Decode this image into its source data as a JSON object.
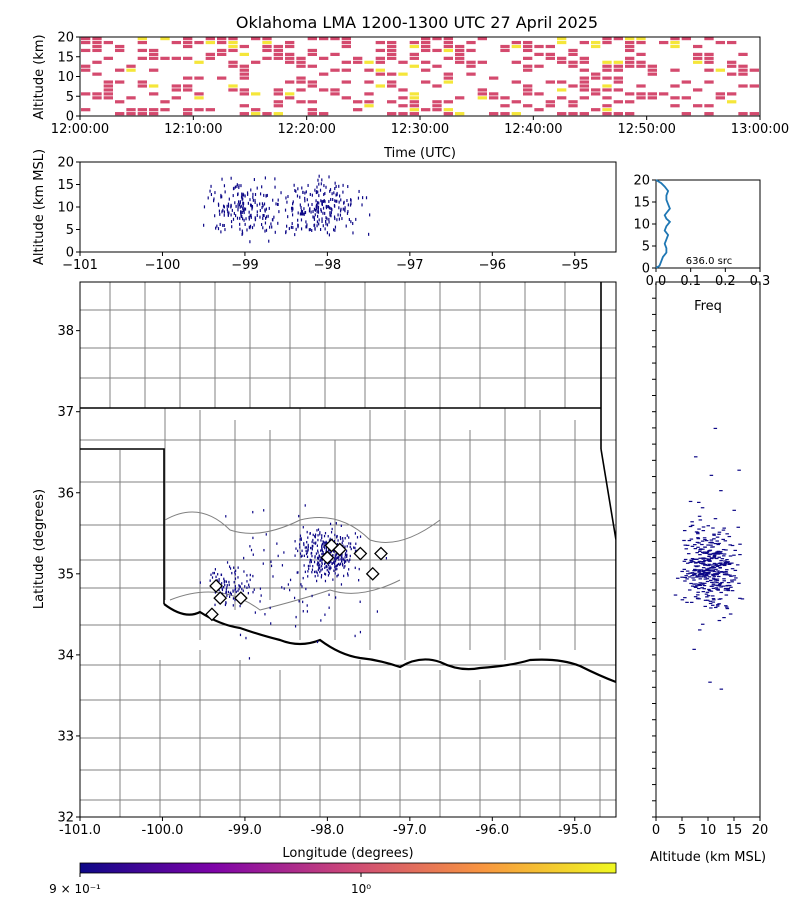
{
  "title": "Oklahoma LMA 1200-1300 UTC 27 April 2025",
  "colors": {
    "time_bins_main": "#d44a6e",
    "time_bins_hi": "#f5e63a",
    "sources": "#0d0887",
    "hist_line": "#1f77b4",
    "county_lines": "#808080",
    "state_lines": "#000000"
  },
  "chart_data": [
    {
      "panel": "time-altitude",
      "type": "heatmap",
      "xlabel": "Time (UTC)",
      "ylabel": "Altitude (km)",
      "xticks": [
        "12:00:00",
        "12:10:00",
        "12:20:00",
        "12:30:00",
        "12:40:00",
        "12:50:00",
        "13:00:00"
      ],
      "yticks": [
        "0",
        "5",
        "10",
        "15",
        "20"
      ],
      "xlim": [
        "12:00:00",
        "13:00:00"
      ],
      "ylim": [
        0,
        20
      ]
    },
    {
      "panel": "longitude-altitude",
      "type": "scatter",
      "xlabel": "",
      "ylabel": "Altitude (km MSL)",
      "xticks": [
        "−101",
        "−100",
        "−99",
        "−98",
        "−97",
        "−96",
        "−95"
      ],
      "yticks": [
        "0",
        "5",
        "10",
        "15",
        "20"
      ],
      "xlim": [
        -101,
        -94.5
      ],
      "ylim": [
        0,
        20
      ]
    },
    {
      "panel": "altitude-histogram",
      "type": "line",
      "xlabel": "Freq",
      "xticks": [
        "0.0",
        "0.1",
        "0.2",
        "0.3"
      ],
      "yticks": [
        "0",
        "5",
        "10",
        "15",
        "20"
      ],
      "xlim": [
        0,
        0.3
      ],
      "ylim": [
        0,
        20
      ],
      "annotation": "636.0 src",
      "series": [
        {
          "x": [
            0.0,
            0.01,
            0.015,
            0.02,
            0.03,
            0.03,
            0.025,
            0.03,
            0.035,
            0.025,
            0.03,
            0.04,
            0.03,
            0.025,
            0.03,
            0.04,
            0.035,
            0.03,
            0.03,
            0.035,
            0.025,
            0.015,
            0.0
          ],
          "y": [
            0,
            0.5,
            1.5,
            2.5,
            3.5,
            4.5,
            5.5,
            6.5,
            7.5,
            8.5,
            9.5,
            10.5,
            11.2,
            12,
            12.5,
            13.5,
            14.5,
            15.5,
            16.5,
            17.5,
            18.5,
            19.3,
            20
          ]
        }
      ]
    },
    {
      "panel": "plan-view",
      "type": "scatter",
      "xlabel": "Longitude (degrees)",
      "ylabel": "Latitude (degrees)",
      "xticks": [
        "-101.0",
        "-100.0",
        "-99.0",
        "-98.0",
        "-97.0",
        "-96.0",
        "-95.0"
      ],
      "yticks": [
        "32",
        "33",
        "34",
        "35",
        "36",
        "37",
        "38"
      ],
      "xlim": [
        -101,
        -94.5
      ],
      "ylim": [
        32,
        38.6
      ],
      "stations": [
        {
          "lon": -98.0,
          "lat": 35.2
        },
        {
          "lon": -97.95,
          "lat": 35.35
        },
        {
          "lon": -97.85,
          "lat": 35.3
        },
        {
          "lon": -97.6,
          "lat": 35.25
        },
        {
          "lon": -97.35,
          "lat": 35.25
        },
        {
          "lon": -97.45,
          "lat": 35.0
        },
        {
          "lon": -99.35,
          "lat": 34.85
        },
        {
          "lon": -99.3,
          "lat": 34.7
        },
        {
          "lon": -99.05,
          "lat": 34.7
        },
        {
          "lon": -99.4,
          "lat": 34.5
        }
      ]
    },
    {
      "panel": "altitude-latitude",
      "type": "scatter",
      "xlabel": "Altitude (km MSL)",
      "xticks": [
        "0",
        "5",
        "10",
        "15",
        "20"
      ],
      "xlim": [
        0,
        20
      ],
      "ylim": [
        32,
        38.6
      ]
    },
    {
      "panel": "colorbar",
      "type": "heatmap",
      "ticks": [
        "9 × 10⁻¹",
        "10⁰"
      ],
      "colors": [
        "#0d0887",
        "#7e03a8",
        "#cc4778",
        "#f89540",
        "#f0f921"
      ]
    }
  ]
}
